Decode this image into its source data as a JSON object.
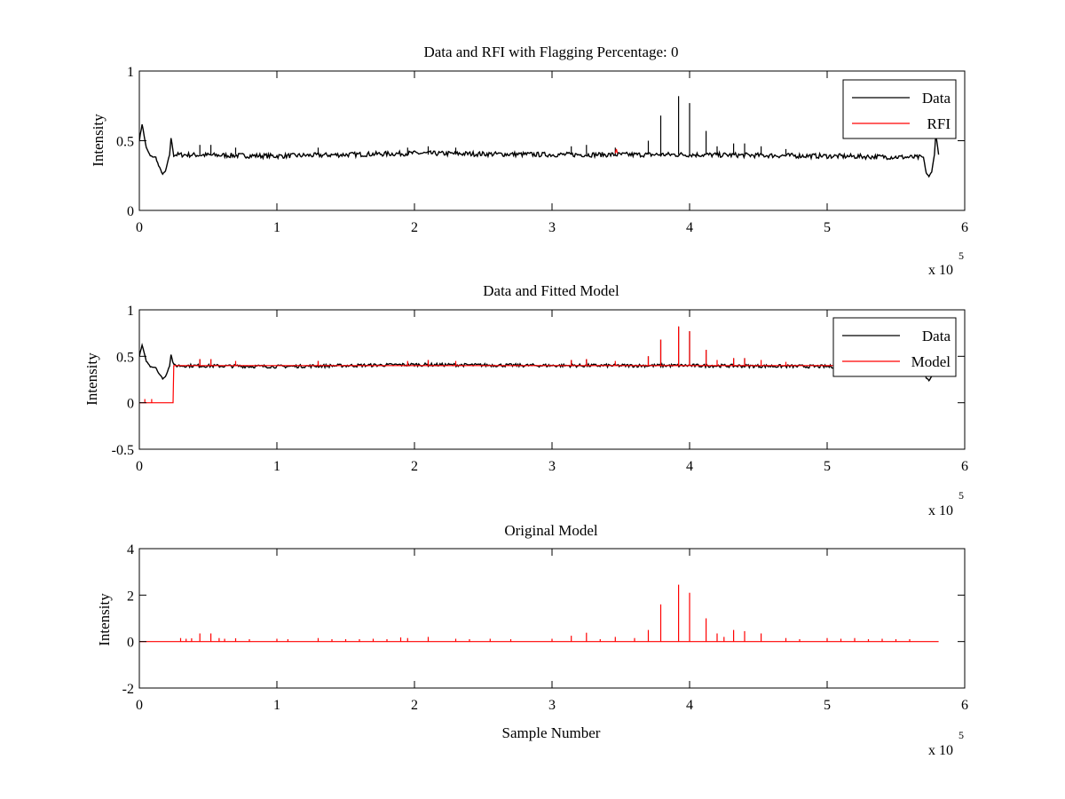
{
  "figure": {
    "background": "#ffffff",
    "data_color": "#000000",
    "model_color": "#ff0000"
  },
  "chart_data": [
    {
      "type": "line",
      "title": "Data and RFI with Flagging Percentage: 0",
      "xlabel": "",
      "ylabel": "Intensity",
      "xlim": [
        0,
        600000
      ],
      "ylim": [
        0,
        1
      ],
      "x_ticks": [
        "0",
        "1",
        "2",
        "3",
        "4",
        "5",
        "6"
      ],
      "y_ticks": [
        "0",
        "0.5",
        "1"
      ],
      "y_tick_values": [
        0,
        0.5,
        1
      ],
      "x_multiplier": {
        "text": "x 10",
        "exponent": "5"
      },
      "grid": false,
      "legend": {
        "position": "top-right",
        "entries": [
          {
            "label": "Data",
            "color": "#000000"
          },
          {
            "label": "RFI",
            "color": "#ff0000"
          }
        ]
      },
      "series": [
        {
          "name": "Data",
          "color": "#000000",
          "baseline": 0.4,
          "points": [
            [
              0,
              0.5
            ],
            [
              2000,
              0.62
            ],
            [
              5000,
              0.45
            ],
            [
              8000,
              0.39
            ],
            [
              12000,
              0.38
            ],
            [
              14000,
              0.32
            ],
            [
              17000,
              0.26
            ],
            [
              19000,
              0.28
            ],
            [
              22000,
              0.4
            ],
            [
              23000,
              0.52
            ],
            [
              25000,
              0.4
            ],
            [
              100000,
              0.39
            ],
            [
              200000,
              0.41
            ],
            [
              300000,
              0.4
            ],
            [
              400000,
              0.4
            ],
            [
              500000,
              0.39
            ],
            [
              570000,
              0.38
            ],
            [
              572000,
              0.27
            ],
            [
              574000,
              0.24
            ],
            [
              576000,
              0.28
            ],
            [
              578000,
              0.4
            ],
            [
              579000,
              0.55
            ],
            [
              581000,
              0.4
            ]
          ],
          "spikes": [
            [
              44000,
              0.47
            ],
            [
              52000,
              0.47
            ],
            [
              70000,
              0.45
            ],
            [
              130000,
              0.45
            ],
            [
              195000,
              0.45
            ],
            [
              210000,
              0.46
            ],
            [
              230000,
              0.45
            ],
            [
              314000,
              0.46
            ],
            [
              325000,
              0.47
            ],
            [
              346000,
              0.45
            ],
            [
              370000,
              0.5
            ],
            [
              379000,
              0.68
            ],
            [
              392000,
              0.82
            ],
            [
              400000,
              0.77
            ],
            [
              412000,
              0.57
            ],
            [
              420000,
              0.46
            ],
            [
              432000,
              0.48
            ],
            [
              440000,
              0.48
            ],
            [
              452000,
              0.46
            ],
            [
              470000,
              0.44
            ]
          ]
        },
        {
          "name": "RFI",
          "color": "#ff0000",
          "points": [
            [
              346000,
              0.41
            ],
            [
              346800,
              0.44
            ],
            [
              347500,
              0.41
            ]
          ]
        }
      ]
    },
    {
      "type": "line",
      "title": "Data and Fitted Model",
      "xlabel": "",
      "ylabel": "Intensity",
      "xlim": [
        0,
        600000
      ],
      "ylim": [
        -0.5,
        1
      ],
      "x_ticks": [
        "0",
        "1",
        "2",
        "3",
        "4",
        "5",
        "6"
      ],
      "y_ticks": [
        "-0.5",
        "0",
        "0.5",
        "1"
      ],
      "y_tick_values": [
        -0.5,
        0,
        0.5,
        1
      ],
      "x_multiplier": {
        "text": "x 10",
        "exponent": "5"
      },
      "grid": false,
      "legend": {
        "position": "top-right",
        "entries": [
          {
            "label": "Data",
            "color": "#000000"
          },
          {
            "label": "Model",
            "color": "#ff0000"
          }
        ]
      },
      "series": [
        {
          "name": "Data",
          "color": "#000000",
          "baseline": 0.4,
          "points": [
            [
              0,
              0.5
            ],
            [
              2000,
              0.62
            ],
            [
              5000,
              0.45
            ],
            [
              8000,
              0.39
            ],
            [
              12000,
              0.38
            ],
            [
              14000,
              0.32
            ],
            [
              17000,
              0.26
            ],
            [
              19000,
              0.28
            ],
            [
              22000,
              0.4
            ],
            [
              23000,
              0.52
            ],
            [
              25000,
              0.4
            ],
            [
              100000,
              0.39
            ],
            [
              200000,
              0.41
            ],
            [
              300000,
              0.4
            ],
            [
              400000,
              0.4
            ],
            [
              500000,
              0.39
            ],
            [
              570000,
              0.38
            ],
            [
              572000,
              0.27
            ],
            [
              574000,
              0.24
            ],
            [
              576000,
              0.28
            ],
            [
              578000,
              0.4
            ],
            [
              579000,
              0.55
            ],
            [
              581000,
              0.4
            ]
          ],
          "spikes": [
            [
              44000,
              0.47
            ],
            [
              52000,
              0.47
            ],
            [
              130000,
              0.45
            ],
            [
              210000,
              0.46
            ],
            [
              314000,
              0.46
            ],
            [
              325000,
              0.47
            ],
            [
              370000,
              0.5
            ],
            [
              379000,
              0.68
            ],
            [
              392000,
              0.82
            ],
            [
              400000,
              0.77
            ],
            [
              412000,
              0.57
            ],
            [
              432000,
              0.48
            ],
            [
              440000,
              0.48
            ]
          ]
        },
        {
          "name": "Model",
          "color": "#ff0000",
          "points": [
            [
              0,
              0.0
            ],
            [
              24500,
              0.0
            ],
            [
              25000,
              0.4
            ],
            [
              581000,
              0.4
            ]
          ],
          "spikes": [
            [
              4000,
              0.04
            ],
            [
              9000,
              0.04
            ],
            [
              44000,
              0.47
            ],
            [
              52000,
              0.47
            ],
            [
              70000,
              0.45
            ],
            [
              130000,
              0.45
            ],
            [
              195000,
              0.45
            ],
            [
              210000,
              0.46
            ],
            [
              230000,
              0.45
            ],
            [
              314000,
              0.46
            ],
            [
              325000,
              0.47
            ],
            [
              346000,
              0.45
            ],
            [
              370000,
              0.5
            ],
            [
              379000,
              0.68
            ],
            [
              392000,
              0.82
            ],
            [
              400000,
              0.77
            ],
            [
              412000,
              0.57
            ],
            [
              420000,
              0.46
            ],
            [
              432000,
              0.48
            ],
            [
              440000,
              0.48
            ],
            [
              452000,
              0.46
            ],
            [
              470000,
              0.44
            ]
          ]
        }
      ]
    },
    {
      "type": "line",
      "title": "Original Model",
      "xlabel": "Sample Number",
      "ylabel": "Intensity",
      "xlim": [
        0,
        600000
      ],
      "ylim": [
        -2,
        4
      ],
      "x_ticks": [
        "0",
        "1",
        "2",
        "3",
        "4",
        "5",
        "6"
      ],
      "y_ticks": [
        "-2",
        "0",
        "2",
        "4"
      ],
      "y_tick_values": [
        -2,
        0,
        2,
        4
      ],
      "x_multiplier": {
        "text": "x 10",
        "exponent": "5"
      },
      "grid": false,
      "series": [
        {
          "name": "Model",
          "color": "#ff0000",
          "baseline": 0.0,
          "points": [
            [
              0,
              0.0
            ],
            [
              581000,
              0.0
            ]
          ],
          "spikes": [
            [
              30000,
              0.15
            ],
            [
              34000,
              0.12
            ],
            [
              38000,
              0.14
            ],
            [
              44000,
              0.35
            ],
            [
              52000,
              0.35
            ],
            [
              58000,
              0.15
            ],
            [
              62000,
              0.12
            ],
            [
              70000,
              0.14
            ],
            [
              80000,
              0.1
            ],
            [
              100000,
              0.12
            ],
            [
              108000,
              0.1
            ],
            [
              130000,
              0.15
            ],
            [
              140000,
              0.1
            ],
            [
              150000,
              0.1
            ],
            [
              160000,
              0.1
            ],
            [
              170000,
              0.12
            ],
            [
              180000,
              0.1
            ],
            [
              190000,
              0.18
            ],
            [
              195000,
              0.15
            ],
            [
              210000,
              0.2
            ],
            [
              230000,
              0.12
            ],
            [
              240000,
              0.1
            ],
            [
              255000,
              0.12
            ],
            [
              270000,
              0.1
            ],
            [
              300000,
              0.12
            ],
            [
              314000,
              0.25
            ],
            [
              325000,
              0.38
            ],
            [
              335000,
              0.1
            ],
            [
              346000,
              0.2
            ],
            [
              360000,
              0.15
            ],
            [
              370000,
              0.5
            ],
            [
              379000,
              1.6
            ],
            [
              392000,
              2.45
            ],
            [
              400000,
              2.1
            ],
            [
              412000,
              1.0
            ],
            [
              420000,
              0.35
            ],
            [
              425000,
              0.2
            ],
            [
              432000,
              0.5
            ],
            [
              440000,
              0.45
            ],
            [
              452000,
              0.35
            ],
            [
              470000,
              0.15
            ],
            [
              480000,
              0.1
            ],
            [
              500000,
              0.15
            ],
            [
              510000,
              0.12
            ],
            [
              520000,
              0.15
            ],
            [
              530000,
              0.1
            ],
            [
              540000,
              0.12
            ],
            [
              550000,
              0.1
            ],
            [
              560000,
              0.1
            ]
          ]
        }
      ]
    }
  ]
}
